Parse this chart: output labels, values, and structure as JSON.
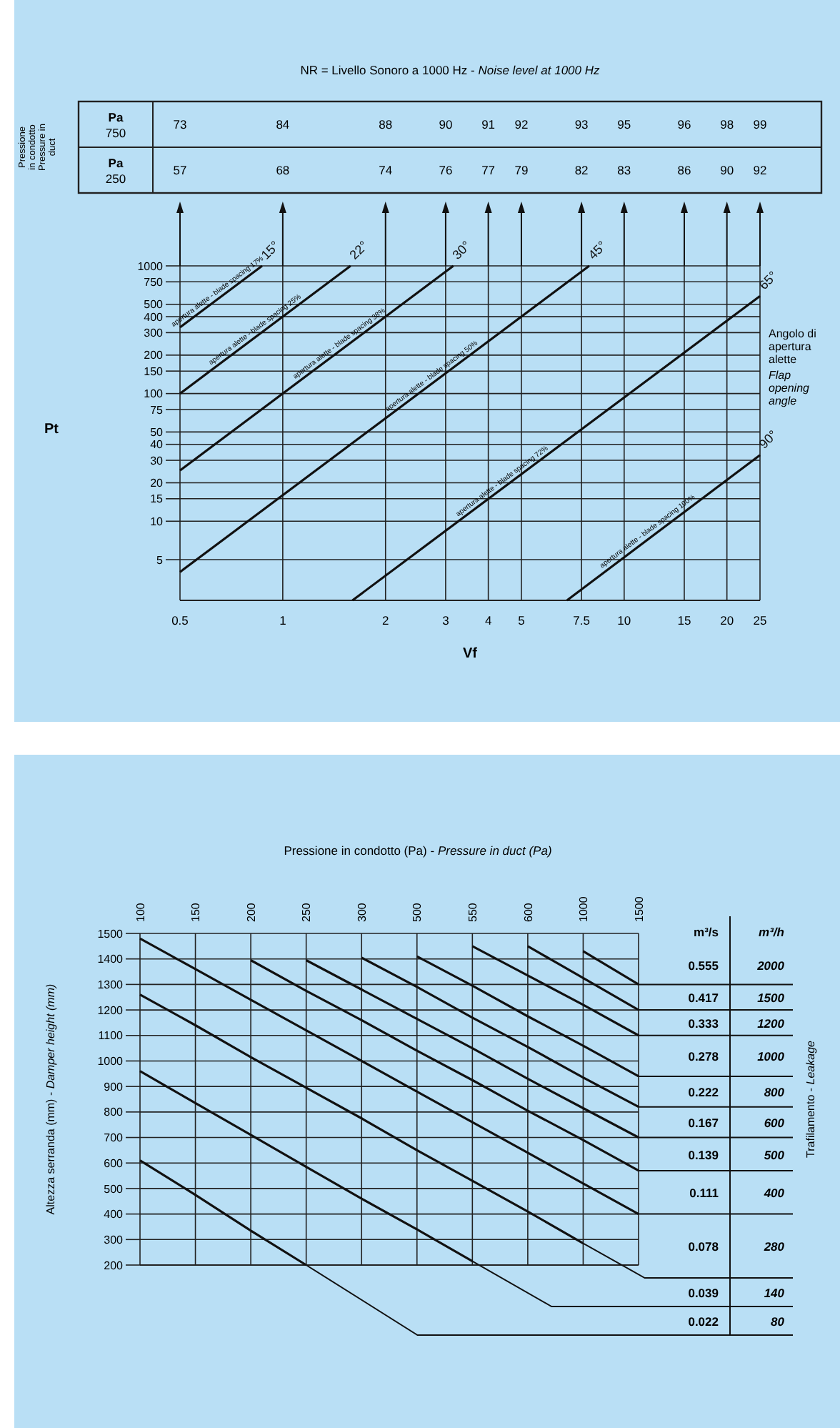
{
  "chart_data": [
    {
      "type": "other",
      "title": "NR = Livello Sonoro a 1000 Hz - Noise level at 1000 Hz",
      "ylabel": "Pressione in condotto Pressure in duct",
      "annotations": [
        "Pa 750",
        "73",
        "84",
        "88",
        "90",
        "91",
        "92",
        "93",
        "95",
        "96",
        "98",
        "99",
        "Pa 250",
        "57",
        "68",
        "74",
        "76",
        "77",
        "79",
        "82",
        "83",
        "86",
        "90",
        "92"
      ]
    },
    {
      "type": "line",
      "xlabel": "Vf",
      "ylabel": "Pt",
      "log": "xy",
      "xlim": [
        0.5,
        25
      ],
      "ylim": [
        2.4,
        1000
      ],
      "xticks": [
        0.5,
        1,
        2,
        3,
        4,
        5,
        7.5,
        10,
        15,
        20,
        25
      ],
      "yticks": [
        5,
        10,
        15,
        20,
        30,
        40,
        50,
        75,
        100,
        150,
        200,
        300,
        400,
        500,
        750,
        1000
      ],
      "grid": true,
      "series": [
        {
          "name": "15°",
          "color": "#111111",
          "x": [
            0.5,
            0.87
          ],
          "values": [
            330,
            1000
          ]
        },
        {
          "name": "22°",
          "color": "#111111",
          "x": [
            0.5,
            1.58
          ],
          "values": [
            100,
            1000
          ]
        },
        {
          "name": "30°",
          "color": "#111111",
          "x": [
            0.5,
            3.16
          ],
          "values": [
            25,
            1000
          ]
        },
        {
          "name": "45°",
          "color": "#111111",
          "x": [
            0.5,
            7.9
          ],
          "values": [
            4,
            1000
          ]
        },
        {
          "name": "65°",
          "color": "#111111",
          "x": [
            1.6,
            25
          ],
          "values": [
            2.4,
            580
          ]
        },
        {
          "name": "90°",
          "color": "#111111",
          "x": [
            6.8,
            25
          ],
          "values": [
            2.4,
            33
          ]
        }
      ],
      "annotations": [
        {
          "text": "apertura alette - blade spacing 17%",
          "x": 0.66,
          "y": 575
        },
        {
          "text": "apertura alette - blade spacing 25%",
          "x": 0.85,
          "y": 289
        },
        {
          "text": "apertura alette - blade spacing 38%",
          "x": 1.5,
          "y": 225
        },
        {
          "text": "apertura alette - blade spacing 50%",
          "x": 2.8,
          "y": 125
        },
        {
          "text": "apertura alette - blade spacing 72%",
          "x": 4.5,
          "y": 18.8
        },
        {
          "text": "apertura alette - blade spacing 100%",
          "x": 12,
          "y": 7.6
        },
        "Angolo di apertura alette",
        "Flap opening angle"
      ]
    },
    {
      "type": "line",
      "title": "Pressione in condotto (Pa) - Pressure in duct (Pa)",
      "ylabel": "Altezza serranda (mm) - Damper height (mm)",
      "categories": [
        "100",
        "150",
        "200",
        "250",
        "300",
        "500",
        "550",
        "600",
        "1000",
        "1500"
      ],
      "ylim": [
        200,
        1500
      ],
      "yticks": [
        200,
        300,
        400,
        500,
        600,
        700,
        800,
        900,
        1000,
        1100,
        1200,
        1300,
        1400,
        1500
      ],
      "grid": true,
      "series": [
        {
          "color": "#111111",
          "values": [
            null,
            null,
            null,
            null,
            null,
            null,
            null,
            null,
            1430,
            1300
          ]
        },
        {
          "color": "#111111",
          "values": [
            null,
            null,
            null,
            null,
            null,
            null,
            null,
            1450,
            1325,
            1200
          ]
        },
        {
          "color": "#111111",
          "values": [
            null,
            null,
            null,
            null,
            null,
            null,
            1450,
            1335,
            1220,
            1100
          ]
        },
        {
          "color": "#111111",
          "values": [
            null,
            null,
            null,
            null,
            null,
            1410,
            1295,
            1175,
            1060,
            940
          ]
        },
        {
          "color": "#111111",
          "values": [
            null,
            null,
            null,
            null,
            1405,
            1290,
            1170,
            1055,
            935,
            820
          ]
        },
        {
          "color": "#111111",
          "values": [
            null,
            null,
            null,
            1395,
            1280,
            1165,
            1050,
            930,
            815,
            700
          ]
        },
        {
          "color": "#111111",
          "values": [
            null,
            null,
            1395,
            1275,
            1160,
            1040,
            925,
            805,
            690,
            570
          ]
        },
        {
          "color": "#111111",
          "values": [
            1480,
            1360,
            1240,
            1120,
            1000,
            880,
            760,
            640,
            520,
            400
          ]
        },
        {
          "color": "#111111",
          "values": [
            1260,
            1140,
            1015,
            895,
            775,
            650,
            530,
            410,
            285,
            null
          ]
        },
        {
          "color": "#111111",
          "values": [
            960,
            835,
            710,
            585,
            460,
            340,
            215,
            null,
            null,
            null
          ]
        },
        {
          "color": "#111111",
          "values": [
            610,
            475,
            335,
            200,
            null,
            null,
            null,
            null,
            null,
            null
          ]
        }
      ]
    },
    {
      "type": "other",
      "ylabel": "Trafilamento - Leakage",
      "annotations": [
        "m³/s",
        "m³/h",
        "0.555",
        "2000",
        "0.417",
        "1500",
        "0.333",
        "1200",
        "0.278",
        "1000",
        "0.222",
        "800",
        "0.167",
        "600",
        "0.139",
        "500",
        "0.111",
        "400",
        "0.078",
        "280",
        "0.039",
        "140",
        "0.022",
        "80"
      ]
    }
  ]
}
